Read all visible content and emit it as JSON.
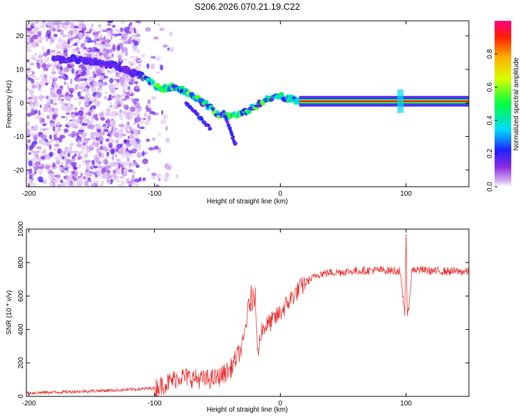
{
  "title": "S206.2026.070.21.19.C22",
  "colors": {
    "snr_line": "#e83030",
    "axes": "#000000",
    "background": "#ffffff"
  },
  "chart_data": [
    {
      "type": "heatmap",
      "name": "spectrogram",
      "xlabel": "Height of straight line (km)",
      "ylabel": "Frequency (Hz)",
      "xlim": [
        -202,
        150
      ],
      "ylim": [
        -25,
        24.5
      ],
      "xticks": [
        -200,
        -100,
        0,
        100
      ],
      "yticks": [
        -20,
        -10,
        0,
        10,
        20
      ],
      "ridge": {
        "description": "main frequency track",
        "x": [
          -180,
          -160,
          -130,
          -110,
          -95,
          -85,
          -70,
          -60,
          -50,
          -40,
          -30,
          -20,
          -10,
          0,
          10,
          15,
          150
        ],
        "y": [
          13,
          13,
          11,
          8,
          4,
          5,
          2,
          0,
          -3,
          -4,
          -3,
          -1,
          1,
          2,
          1,
          0.5,
          0.5
        ]
      },
      "colorbar": {
        "label": "Normalized spectral amplitude",
        "range": [
          0,
          1
        ],
        "ticks": [
          0.0,
          0.2,
          0.4,
          0.6,
          0.8
        ]
      }
    },
    {
      "type": "line",
      "name": "snr",
      "xlabel": "Height of straight line (km)",
      "ylabel": "SNR (10 * v/v)",
      "xlim": [
        -202,
        150
      ],
      "ylim": [
        0,
        1000
      ],
      "xticks": [
        -200,
        -100,
        0,
        100
      ],
      "yticks": [
        0,
        200,
        400,
        600,
        800,
        1000
      ],
      "series": [
        {
          "name": "SNR",
          "x": [
            -202,
            -180,
            -160,
            -140,
            -120,
            -100,
            -90,
            -80,
            -70,
            -60,
            -50,
            -40,
            -30,
            -25,
            -20,
            -18,
            -15,
            -10,
            -5,
            0,
            10,
            20,
            30,
            40,
            60,
            80,
            95,
            99,
            100,
            101,
            105,
            120,
            150
          ],
          "y": [
            20,
            25,
            30,
            35,
            40,
            50,
            80,
            120,
            110,
            100,
            110,
            160,
            300,
            550,
            600,
            250,
            400,
            430,
            460,
            500,
            600,
            680,
            730,
            740,
            750,
            755,
            750,
            500,
            1000,
            450,
            760,
            750,
            745
          ]
        }
      ]
    }
  ]
}
